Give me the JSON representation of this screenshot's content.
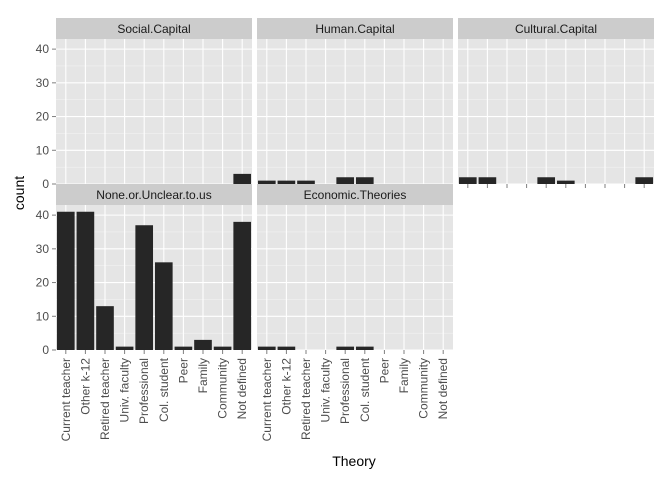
{
  "chart_data": {
    "type": "bar",
    "faceted": true,
    "xlabel": "Theory",
    "ylabel": "count",
    "ylim": [
      0,
      43
    ],
    "yticks": [
      0,
      10,
      20,
      30,
      40
    ],
    "categories": [
      "Current teacher",
      "Other k-12",
      "Retired teacher",
      "Univ. faculty",
      "Professional",
      "Col. student",
      "Peer",
      "Family",
      "Community",
      "Not defined"
    ],
    "panels": [
      {
        "name": "Social.Capital",
        "values": [
          0,
          0,
          0,
          0,
          0,
          0,
          0,
          0,
          0,
          3
        ]
      },
      {
        "name": "Human.Capital",
        "values": [
          1,
          1,
          1,
          0,
          2,
          2,
          0,
          0,
          0,
          0
        ]
      },
      {
        "name": "Cultural.Capital",
        "values": [
          2,
          2,
          0,
          0,
          2,
          1,
          0,
          0,
          0,
          2
        ]
      },
      {
        "name": "None.or.Unclear.to.us",
        "values": [
          41,
          41,
          13,
          1,
          37,
          26,
          1,
          3,
          1,
          38
        ]
      },
      {
        "name": "Economic.Theories",
        "values": [
          1,
          1,
          0,
          0,
          1,
          1,
          0,
          0,
          0,
          0
        ]
      }
    ],
    "colors": {
      "panel_bg": "#e5e5e5",
      "strip_bg": "#cccccc",
      "grid_major": "#ffffff",
      "grid_minor": "#f2f2f2",
      "bar": "#262626"
    }
  }
}
